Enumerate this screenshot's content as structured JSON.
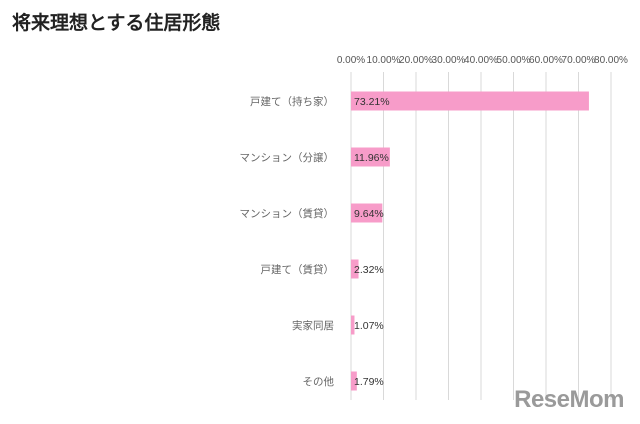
{
  "chart_data": {
    "type": "bar",
    "orientation": "horizontal",
    "title": "将来理想とする住居形態",
    "categories": [
      "戸建て（持ち家）",
      "マンション（分譲）",
      "マンション（賃貸）",
      "戸建て（賃貸）",
      "実家同居",
      "その他"
    ],
    "values": [
      73.21,
      11.96,
      9.64,
      2.32,
      1.07,
      1.79
    ],
    "value_labels": [
      "73.21%",
      "11.96%",
      "9.64%",
      "2.32%",
      "1.07%",
      "1.79%"
    ],
    "xlim": [
      0,
      80
    ],
    "xticks": [
      0,
      10,
      20,
      30,
      40,
      50,
      60,
      70,
      80
    ],
    "xtick_labels": [
      "0.00%",
      "10.00%",
      "20.00%",
      "30.00%",
      "40.00%",
      "50.00%",
      "60.00%",
      "70.00%",
      "80.00%"
    ],
    "axis_position": "top",
    "grid": true,
    "bar_color": "#f79cc9"
  },
  "watermark": "ReseMom"
}
